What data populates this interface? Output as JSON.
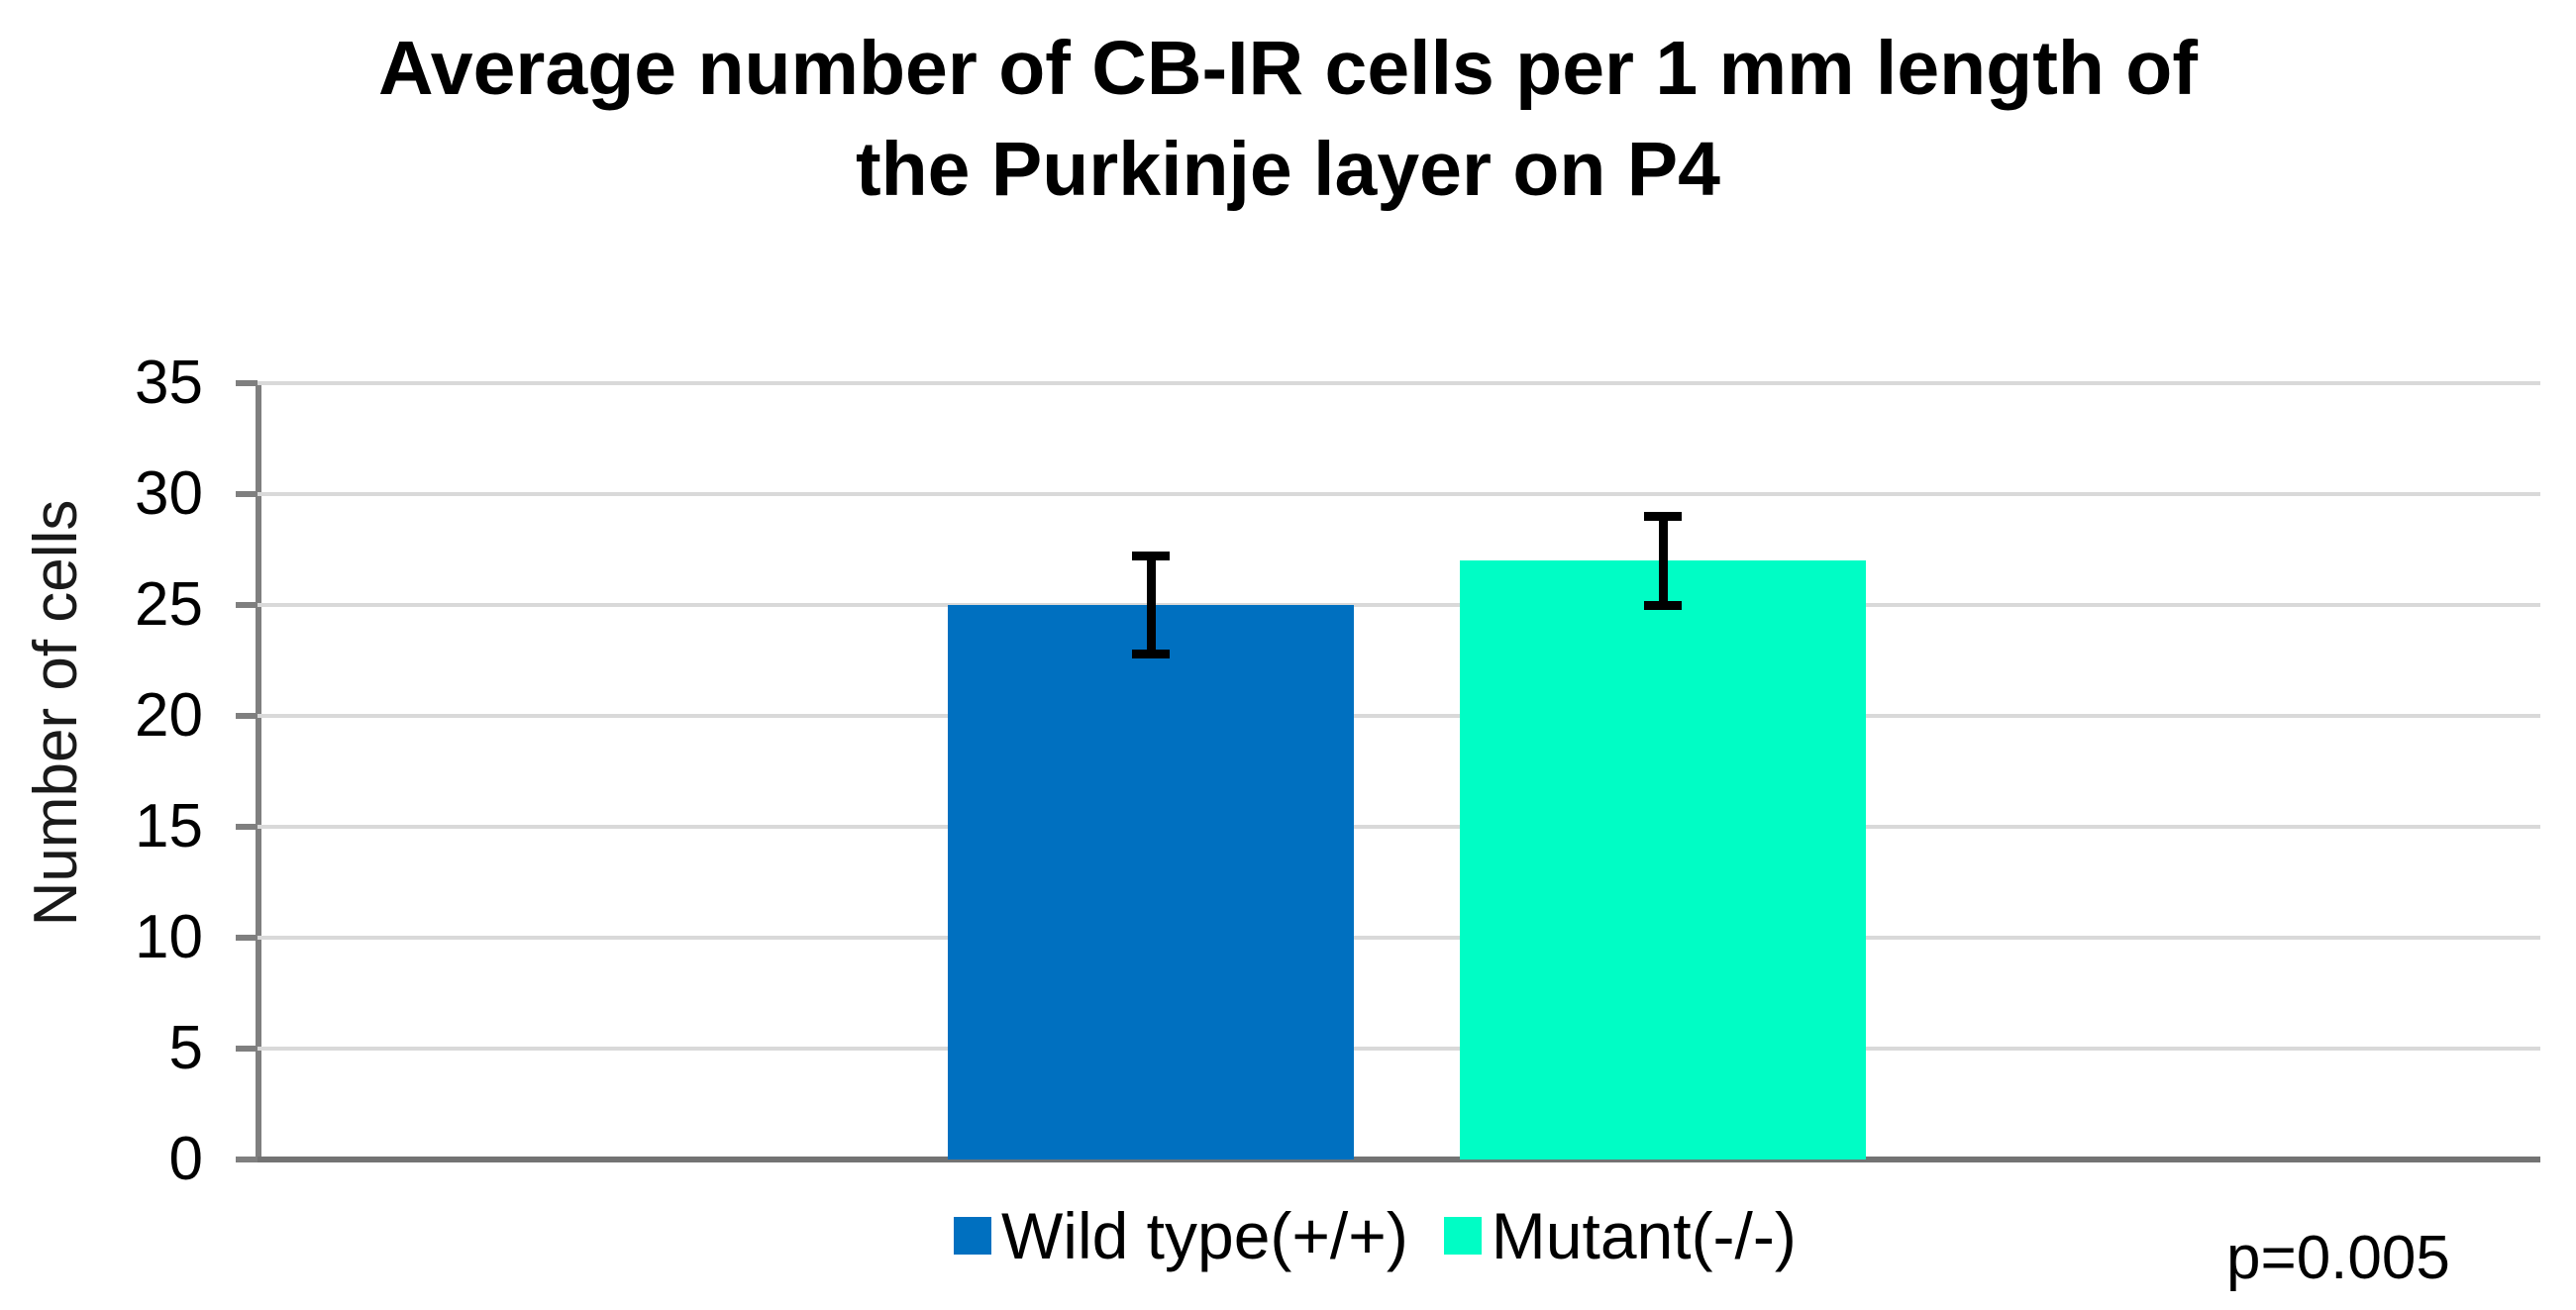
{
  "chart_data": {
    "type": "bar",
    "title": "Average number of CB-IR cells per 1 mm length of\nthe Purkinje layer on P4",
    "xlabel": "",
    "ylabel": "Number of cells",
    "ylim": [
      0,
      35
    ],
    "yticks": [
      0,
      5,
      10,
      15,
      20,
      25,
      30,
      35
    ],
    "grid": true,
    "legend_position": "bottom",
    "annotation": "p=0.005",
    "bars": [
      {
        "label": "Wild type(+/+)",
        "value": 25,
        "error": 2.2,
        "color": "#0070C0"
      },
      {
        "label": "Mutant(-/-)",
        "value": 27,
        "error": 2.0,
        "color": "#00FDC5"
      }
    ]
  },
  "colors": {
    "gridline": "#d9d9d9",
    "axis": "#7f7f7f",
    "error_bar": "#000000",
    "text": "#000000"
  }
}
